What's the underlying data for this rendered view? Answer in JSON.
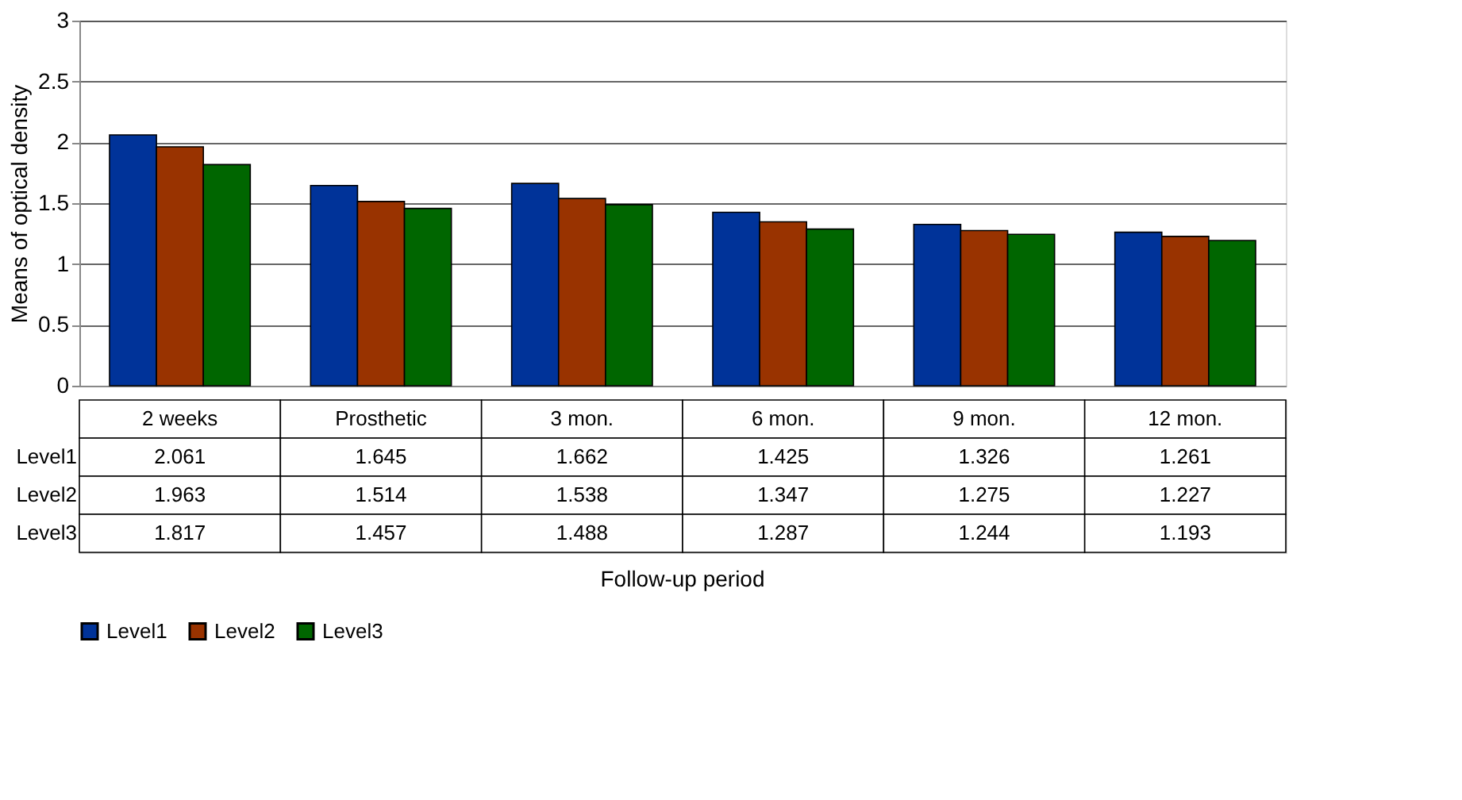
{
  "chart_data": {
    "type": "bar",
    "annotations": [
      "Follow-up period"
    ],
    "ylabel": "Means of optical density",
    "categories": [
      "2 weeks",
      "Prosthetic",
      "3 mon.",
      "6 mon.",
      "9 mon.",
      "12 mon."
    ],
    "series": [
      {
        "name": "Level1",
        "color": "#003399",
        "values": [
          2.061,
          1.645,
          1.662,
          1.425,
          1.326,
          1.261
        ]
      },
      {
        "name": "Level2",
        "color": "#993300",
        "values": [
          1.963,
          1.514,
          1.538,
          1.347,
          1.275,
          1.227
        ]
      },
      {
        "name": "Level3",
        "color": "#006600",
        "values": [
          1.817,
          1.457,
          1.488,
          1.287,
          1.244,
          1.193
        ]
      }
    ],
    "ylim": [
      0,
      3
    ],
    "yticks": [
      0,
      0.5,
      1,
      1.5,
      2,
      2.5,
      3
    ],
    "grid": "y",
    "legend": "bottom",
    "data_labels": true
  }
}
